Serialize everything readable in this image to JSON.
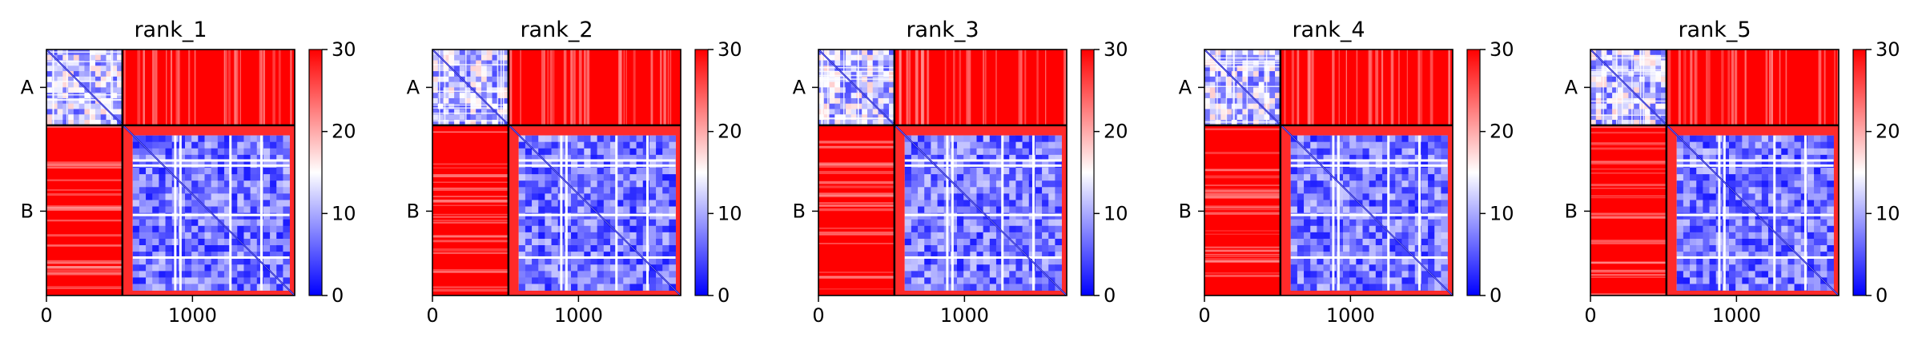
{
  "chart_data": {
    "type": "heatmap",
    "layout": "1x5 panels",
    "colormap": {
      "name": "bwr",
      "low": "#0000ff",
      "mid": "#ffffff",
      "high": "#ff0000"
    },
    "vmin": 0,
    "vmax": 30,
    "colorbar_ticks": [
      0,
      10,
      20,
      30
    ],
    "colorbar_tick_labels": [
      "0",
      "10",
      "20",
      "30"
    ],
    "x_ticks": [
      0,
      1000
    ],
    "x_tick_labels": [
      "0",
      "1000"
    ],
    "xlim": [
      0,
      1700
    ],
    "ylim": [
      1700,
      0
    ],
    "chain_boundary": 520,
    "chains": [
      {
        "label": "A",
        "start": 0,
        "end": 520
      },
      {
        "label": "B",
        "start": 520,
        "end": 1700
      }
    ],
    "blocks": [
      {
        "rows": "A",
        "cols": "A",
        "level": "low-medium (blue/white)"
      },
      {
        "rows": "A",
        "cols": "B",
        "level": "high (red)"
      },
      {
        "rows": "B",
        "cols": "A",
        "level": "high (red)"
      },
      {
        "rows": "B",
        "cols": "B",
        "level": "low (blue) with white domain stripes"
      }
    ],
    "panels": [
      {
        "title": "rank_1"
      },
      {
        "title": "rank_2"
      },
      {
        "title": "rank_3"
      },
      {
        "title": "rank_4"
      },
      {
        "title": "rank_5"
      }
    ]
  }
}
